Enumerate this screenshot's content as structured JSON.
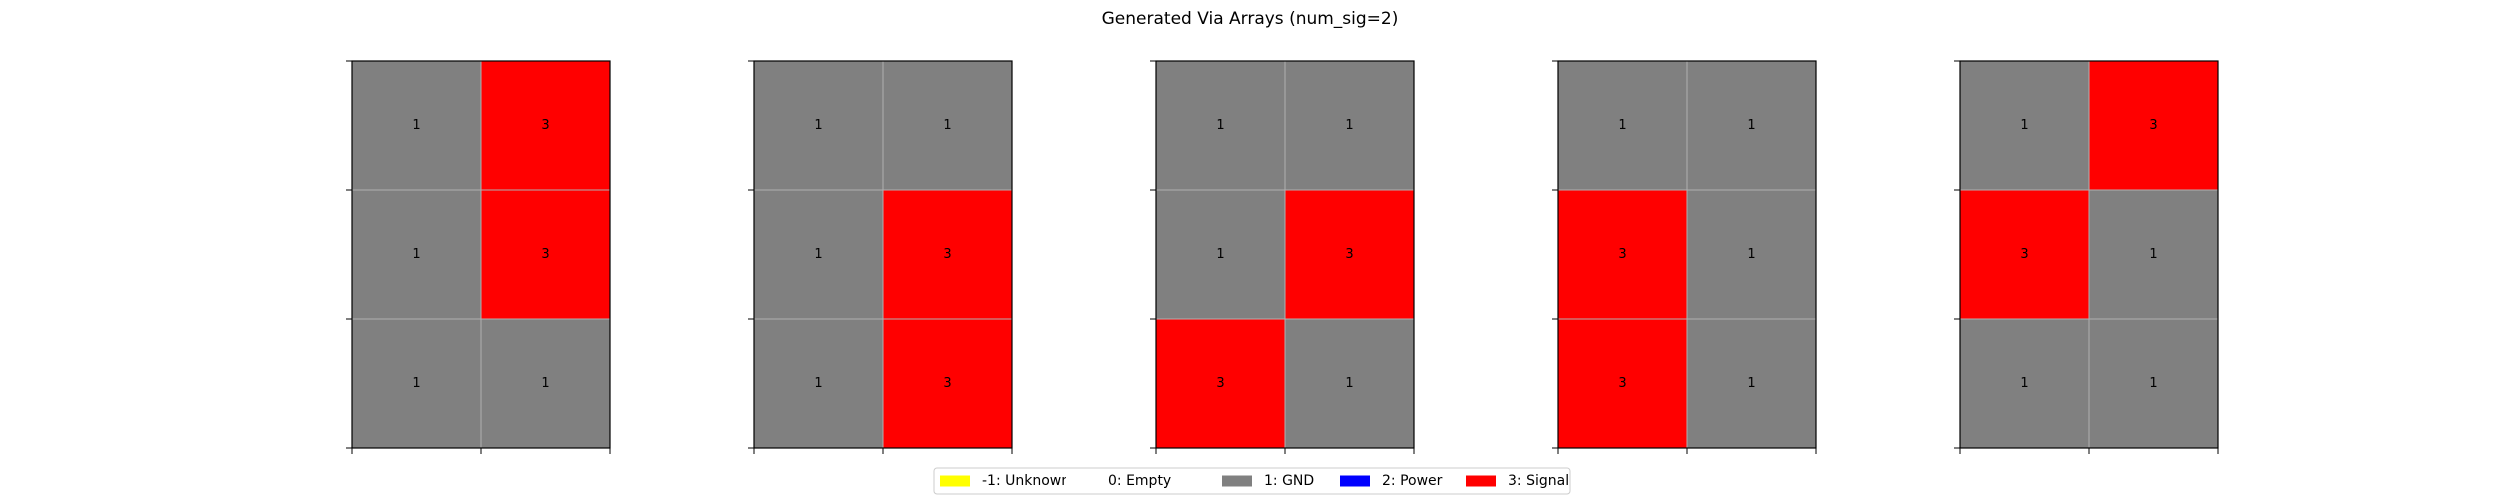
{
  "chart_data": {
    "type": "heatmap",
    "title": "Generated Via Arrays (num_sig=2)",
    "grid": true,
    "legend_position": "bottom-center",
    "colors": {
      "-1": "#ffff00",
      "0": "#ffffff",
      "1": "#808080",
      "2": "#0000ff",
      "3": "#ff0000"
    },
    "legend": [
      {
        "value": "-1",
        "label": "-1: Unknown",
        "color": "#ffff00"
      },
      {
        "value": "0",
        "label": "0: Empty",
        "color": "#ffffff"
      },
      {
        "value": "1",
        "label": "1: GND",
        "color": "#808080"
      },
      {
        "value": "2",
        "label": "2: Power",
        "color": "#0000ff"
      },
      {
        "value": "3",
        "label": "3: Signal",
        "color": "#ff0000"
      }
    ],
    "arrays": [
      [
        [
          1,
          3
        ],
        [
          1,
          3
        ],
        [
          1,
          1
        ]
      ],
      [
        [
          1,
          1
        ],
        [
          1,
          3
        ],
        [
          1,
          3
        ]
      ],
      [
        [
          1,
          1
        ],
        [
          1,
          3
        ],
        [
          3,
          1
        ]
      ],
      [
        [
          1,
          1
        ],
        [
          3,
          1
        ],
        [
          3,
          1
        ]
      ],
      [
        [
          1,
          3
        ],
        [
          3,
          1
        ],
        [
          1,
          1
        ]
      ]
    ]
  }
}
